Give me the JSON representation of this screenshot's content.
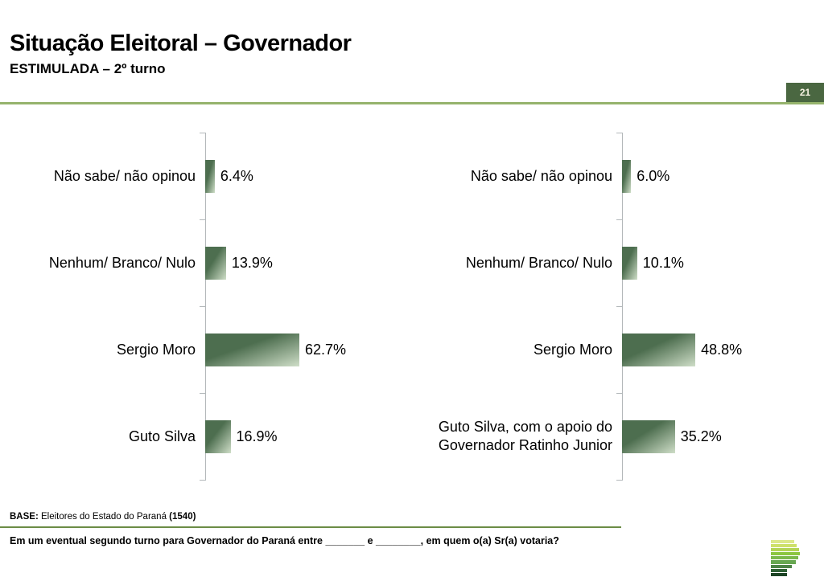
{
  "page": {
    "title": "Situação Eleitoral – Governador",
    "subtitle": "ESTIMULADA – 2º turno",
    "page_number": "21"
  },
  "chart_data": [
    {
      "type": "bar",
      "orientation": "horizontal",
      "categories": [
        "Não sabe/ não opinou",
        "Nenhum/ Branco/ Nulo",
        "Sergio Moro",
        "Guto Silva"
      ],
      "values": [
        6.4,
        13.9,
        62.7,
        16.9
      ],
      "value_labels": [
        "6.4%",
        "13.9%",
        "62.7%",
        "16.9%"
      ],
      "xlim": [
        0,
        100
      ],
      "grid": false,
      "legend": "none"
    },
    {
      "type": "bar",
      "orientation": "horizontal",
      "categories": [
        "Não sabe/ não opinou",
        "Nenhum/ Branco/ Nulo",
        "Sergio Moro",
        "Guto Silva, com o apoio do\nGovernador Ratinho Junior"
      ],
      "values": [
        6.0,
        10.1,
        48.8,
        35.2
      ],
      "value_labels": [
        "6.0%",
        "10.1%",
        "48.8%",
        "35.2%"
      ],
      "xlim": [
        0,
        100
      ],
      "grid": false,
      "legend": "none"
    }
  ],
  "footer": {
    "base_label": "BASE:",
    "base_text": " Eleitores do Estado do Paraná ",
    "base_n": "(1540)",
    "question": "Em um eventual segundo turno para Governador do Paraná entre _______ e ________, em quem o(a) Sr(a) votaria?"
  },
  "colors": {
    "bar_dark": "#4d6e4f",
    "bar_light": "#cfdec8",
    "badge_bg": "#4a6741",
    "header_line": "#95b36c",
    "footer_line": "#6b8c46",
    "axis": "#b3b8ba"
  },
  "logo": {
    "name": "parana-pesquisas-logo",
    "stripes": [
      {
        "width": 29,
        "color": "#dce88a"
      },
      {
        "width": 32,
        "color": "#cde06a"
      },
      {
        "width": 35,
        "color": "#b3d455"
      },
      {
        "width": 36,
        "color": "#8cc63f"
      },
      {
        "width": 34,
        "color": "#7cb94b"
      },
      {
        "width": 31,
        "color": "#67a751"
      },
      {
        "width": 26,
        "color": "#4c8347"
      },
      {
        "width": 20,
        "color": "#2f6136"
      },
      {
        "width": 20,
        "color": "#1d4425"
      }
    ]
  }
}
